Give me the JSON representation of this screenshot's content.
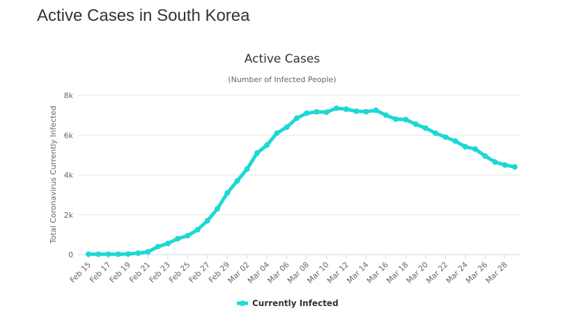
{
  "page": {
    "title": "Active Cases in South Korea"
  },
  "chart_data": {
    "type": "line",
    "title": "Active Cases",
    "subtitle": "(Number of Infected People)",
    "xlabel": "",
    "ylabel": "Total Coronavirus Currently Infected",
    "ylim": [
      0,
      8000
    ],
    "y_ticks": [
      0,
      2000,
      4000,
      6000,
      8000
    ],
    "y_tick_labels": [
      "0",
      "2k",
      "4k",
      "6k",
      "8k"
    ],
    "x_tick_labels": [
      "Feb 15",
      "Feb 17",
      "Feb 19",
      "Feb 21",
      "Feb 23",
      "Feb 25",
      "Feb 27",
      "Feb 29",
      "Mar 02",
      "Mar 04",
      "Mar 06",
      "Mar 08",
      "Mar 10",
      "Mar 12",
      "Mar 14",
      "Mar 16",
      "Mar 18",
      "Mar 20",
      "Mar 22",
      "Mar 24",
      "Mar 26",
      "Mar 28"
    ],
    "grid": "horizontal",
    "legend_position": "bottom-center",
    "categories": [
      "Feb 15",
      "Feb 16",
      "Feb 17",
      "Feb 18",
      "Feb 19",
      "Feb 20",
      "Feb 21",
      "Feb 22",
      "Feb 23",
      "Feb 24",
      "Feb 25",
      "Feb 26",
      "Feb 27",
      "Feb 28",
      "Feb 29",
      "Mar 01",
      "Mar 02",
      "Mar 03",
      "Mar 04",
      "Mar 05",
      "Mar 06",
      "Mar 07",
      "Mar 08",
      "Mar 09",
      "Mar 10",
      "Mar 11",
      "Mar 12",
      "Mar 13",
      "Mar 14",
      "Mar 15",
      "Mar 16",
      "Mar 17",
      "Mar 18",
      "Mar 19",
      "Mar 20",
      "Mar 21",
      "Mar 22",
      "Mar 23",
      "Mar 24",
      "Mar 25",
      "Mar 26",
      "Mar 27",
      "Mar 28",
      "Mar 29"
    ],
    "series": [
      {
        "name": "Currently Infected",
        "color": "#1dd8d4",
        "values": [
          20,
          20,
          20,
          20,
          30,
          70,
          140,
          400,
          560,
          800,
          950,
          1250,
          1700,
          2300,
          3100,
          3700,
          4300,
          5100,
          5500,
          6100,
          6400,
          6850,
          7100,
          7170,
          7150,
          7350,
          7300,
          7200,
          7180,
          7250,
          7000,
          6800,
          6780,
          6550,
          6350,
          6100,
          5900,
          5700,
          5420,
          5300,
          4950,
          4650,
          4500,
          4400
        ]
      }
    ],
    "colors": {
      "gridline": "#e6e6e6",
      "axis_line": "#ccd6eb",
      "tick_text": "#666666",
      "title_text": "#333333"
    }
  }
}
